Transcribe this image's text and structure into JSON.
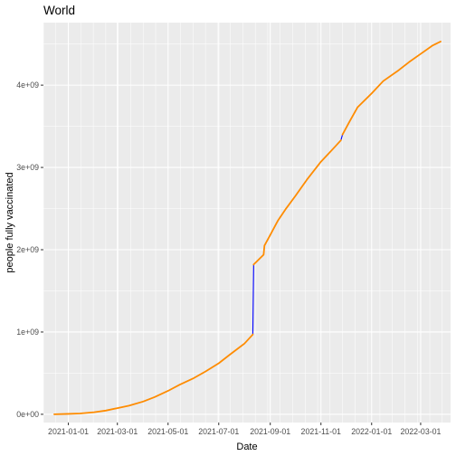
{
  "chart_data": {
    "type": "line",
    "title": "World",
    "xlabel": "Date",
    "ylabel": "people fully vaccinated",
    "x_ticks": [
      "2021-01-01",
      "2021-03-01",
      "2021-05-01",
      "2021-07-01",
      "2021-09-01",
      "2021-11-01",
      "2022-01-01",
      "2022-03-01"
    ],
    "y_ticks": [
      0,
      1000000000,
      2000000000,
      3000000000,
      4000000000
    ],
    "y_tick_labels": [
      "0e+00",
      "1e+09",
      "2e+09",
      "3e+09",
      "4e+09"
    ],
    "xlim": [
      "2020-12-02",
      "2022-04-06"
    ],
    "ylim": [
      -100000000,
      4760000000
    ],
    "grid": true,
    "panel_background": "#ebebeb",
    "grid_color": "#ffffff",
    "series": [
      {
        "color": "#0000ff",
        "x": [
          "2020-12-15",
          "2021-01-01",
          "2021-01-15",
          "2021-02-01",
          "2021-02-15",
          "2021-03-01",
          "2021-03-15",
          "2021-04-01",
          "2021-04-15",
          "2021-05-01",
          "2021-05-15",
          "2021-06-01",
          "2021-06-15",
          "2021-07-01",
          "2021-07-15",
          "2021-08-01",
          "2021-08-11",
          "2021-08-12",
          "2021-08-20",
          "2021-08-24",
          "2021-08-25",
          "2021-09-01",
          "2021-09-10",
          "2021-09-20",
          "2021-10-01",
          "2021-10-15",
          "2021-11-01",
          "2021-11-15",
          "2021-11-25",
          "2021-11-27",
          "2021-12-05",
          "2021-12-15",
          "2022-01-01",
          "2022-01-15",
          "2022-02-01",
          "2022-02-15",
          "2022-03-01",
          "2022-03-15",
          "2022-03-25"
        ],
        "y": [
          0,
          5000000,
          10000000,
          25000000,
          45000000,
          75000000,
          105000000,
          155000000,
          210000000,
          285000000,
          360000000,
          440000000,
          520000000,
          620000000,
          730000000,
          860000000,
          970000000,
          1820000000,
          1900000000,
          1940000000,
          2050000000,
          2180000000,
          2350000000,
          2500000000,
          2650000000,
          2850000000,
          3070000000,
          3220000000,
          3330000000,
          3400000000,
          3550000000,
          3730000000,
          3900000000,
          4050000000,
          4170000000,
          4280000000,
          4380000000,
          4480000000,
          4530000000
        ]
      },
      {
        "color": "#ff8c00",
        "x": [
          "2020-12-15",
          "2021-01-01",
          "2021-01-15",
          "2021-02-01",
          "2021-02-15",
          "2021-03-01",
          "2021-03-15",
          "2021-04-01",
          "2021-04-15",
          "2021-05-01",
          "2021-05-15",
          "2021-06-01",
          "2021-06-15",
          "2021-07-01",
          "2021-07-15",
          "2021-08-01",
          "2021-08-11",
          "2021-08-12",
          "2021-08-20",
          "2021-08-24",
          "2021-08-25",
          "2021-09-01",
          "2021-09-10",
          "2021-09-20",
          "2021-10-01",
          "2021-10-15",
          "2021-11-01",
          "2021-11-15",
          "2021-11-25",
          "2021-11-27",
          "2021-12-05",
          "2021-12-15",
          "2022-01-01",
          "2022-01-15",
          "2022-02-01",
          "2022-02-15",
          "2022-03-01",
          "2022-03-15",
          "2022-03-25"
        ],
        "y": [
          0,
          5000000,
          10000000,
          25000000,
          45000000,
          75000000,
          105000000,
          155000000,
          210000000,
          285000000,
          360000000,
          440000000,
          520000000,
          620000000,
          730000000,
          860000000,
          970000000,
          1820000000,
          1900000000,
          1940000000,
          2050000000,
          2180000000,
          2350000000,
          2500000000,
          2650000000,
          2850000000,
          3070000000,
          3220000000,
          3330000000,
          3400000000,
          3550000000,
          3730000000,
          3900000000,
          4050000000,
          4170000000,
          4280000000,
          4380000000,
          4480000000,
          4530000000
        ],
        "gaps_after": [
          "2021-08-11",
          "2021-11-25"
        ]
      }
    ]
  }
}
